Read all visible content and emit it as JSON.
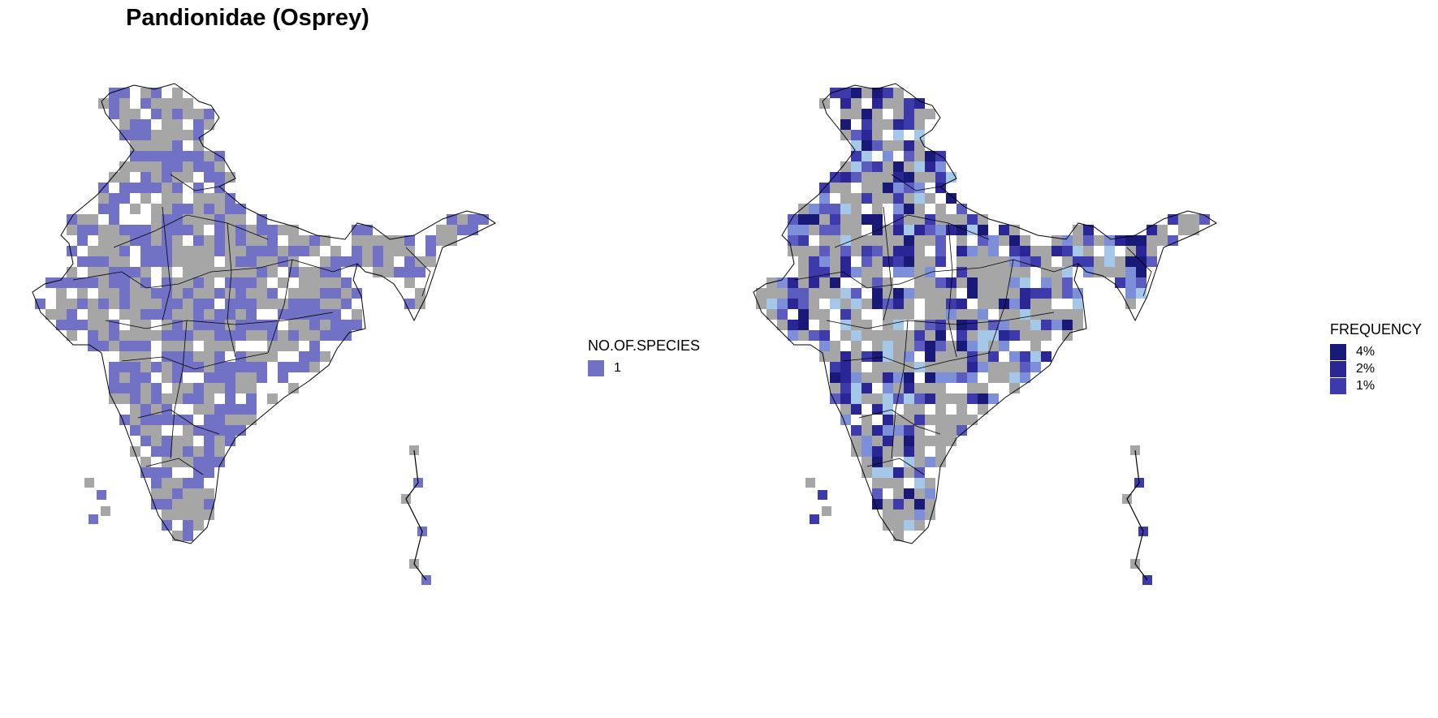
{
  "title": "Pandionidae (Osprey)",
  "colors": {
    "no_data": "#a6a6a6",
    "species_fill": "#7171c6",
    "boundary": "#000000",
    "freq_scale": [
      "#a6c8e8",
      "#7e8fd9",
      "#5c5cc0",
      "#3d3aac",
      "#2b2696",
      "#191978"
    ]
  },
  "maps": [
    {
      "id": "species-map",
      "legend": {
        "title": "NO.OF.SPECIES",
        "items": [
          {
            "label": "1",
            "color": "#7171c6"
          }
        ]
      }
    },
    {
      "id": "frequency-map",
      "legend": {
        "title": "FREQUENCY",
        "items": [
          {
            "label": "4%",
            "color": "#191978"
          },
          {
            "label": "2%",
            "color": "#2b2696"
          },
          {
            "label": "1%",
            "color": "#3d3aac"
          }
        ]
      }
    }
  ]
}
